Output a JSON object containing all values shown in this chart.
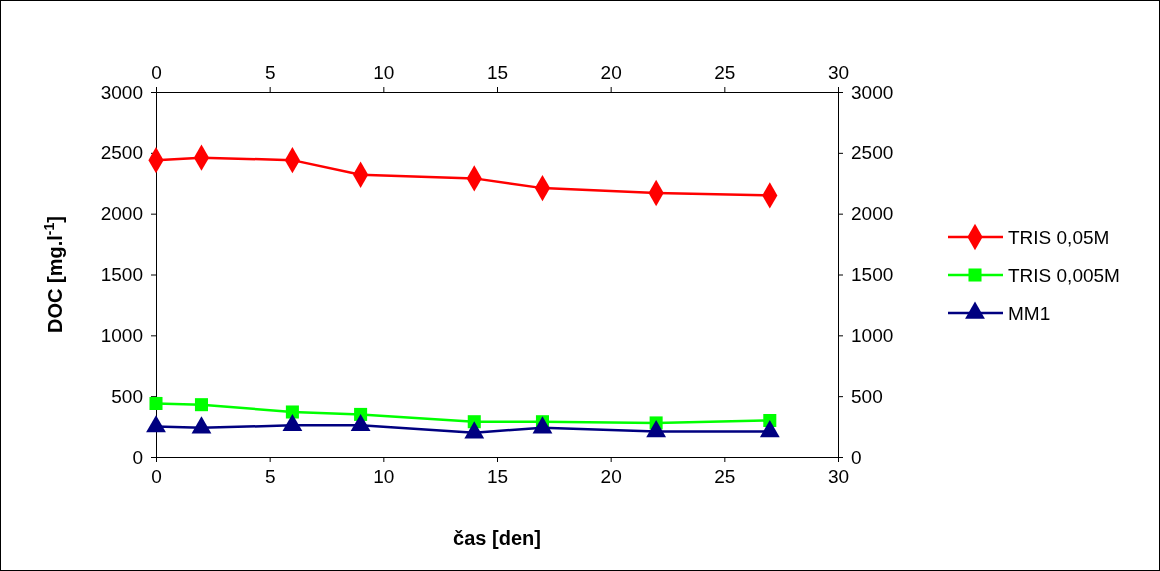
{
  "chart_data": {
    "type": "line",
    "xlabel": "čas [den]",
    "ylabel": "DOC [mg.l$^{-1}$]",
    "x": [
      0,
      2,
      6,
      9,
      14,
      17,
      22,
      27
    ],
    "xlim": [
      0,
      30
    ],
    "xticks": [
      0,
      5,
      10,
      15,
      20,
      25,
      30
    ],
    "x2lim": [
      0,
      30
    ],
    "x2ticks": [
      0,
      5,
      10,
      15,
      20,
      25,
      30
    ],
    "ylim": [
      0,
      3000
    ],
    "yticks": [
      0,
      500,
      1000,
      1500,
      2000,
      2500,
      3000
    ],
    "y2lim": [
      0,
      3000
    ],
    "y2ticks": [
      0,
      500,
      1000,
      1500,
      2000,
      2500,
      3000
    ],
    "legend": "right",
    "grid": false,
    "line_style": "solid",
    "series": [
      {
        "name": "TRIS 0,05M",
        "color": "#ff0000",
        "marker": "diamond",
        "values": [
          2440,
          2460,
          2440,
          2320,
          2290,
          2210,
          2170,
          2150
        ]
      },
      {
        "name": "TRIS 0,005M",
        "color": "#00ff00",
        "marker": "square",
        "values": [
          440,
          430,
          370,
          350,
          290,
          290,
          280,
          300
        ]
      },
      {
        "name": "MM1",
        "color": "#000080",
        "marker": "triangle",
        "values": [
          250,
          240,
          260,
          260,
          200,
          240,
          210,
          210
        ]
      }
    ]
  }
}
